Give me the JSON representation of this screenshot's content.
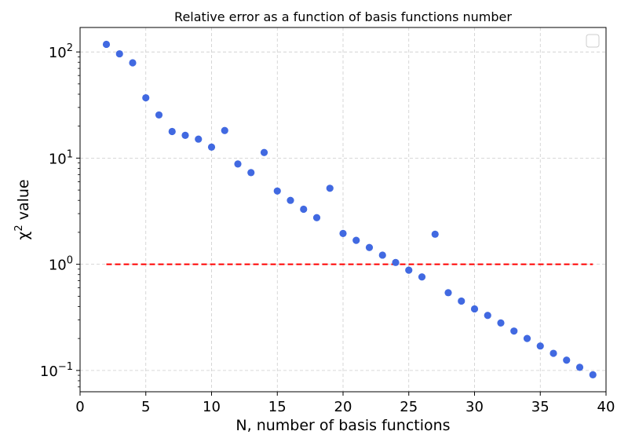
{
  "chart_data": {
    "type": "scatter",
    "title": "Relative error as a function of basis functions number",
    "xlabel": "N, number of basis functions",
    "ylabel": "χ² value",
    "xlim": [
      0,
      40
    ],
    "ylim": [
      0.063,
      170
    ],
    "yscale": "log",
    "grid": true,
    "legend": "top-right, empty",
    "x_ticks": [
      0,
      5,
      10,
      15,
      20,
      25,
      30,
      35,
      40
    ],
    "y_ticks": [
      {
        "value": 0.1,
        "base": "10",
        "exp": "−1"
      },
      {
        "value": 1,
        "base": "10",
        "exp": "0"
      },
      {
        "value": 10,
        "base": "10",
        "exp": "1"
      },
      {
        "value": 100,
        "base": "10",
        "exp": "2"
      }
    ],
    "colors": {
      "points": "#4169e1",
      "reference": "#ff0000",
      "grid": "#cccccc"
    },
    "series": [
      {
        "kind": "points",
        "x": [
          2,
          3,
          4,
          5,
          6,
          7,
          8,
          9,
          10,
          11,
          12,
          13,
          14,
          15,
          16,
          17,
          18,
          19,
          20,
          21,
          22,
          23,
          24,
          25,
          26,
          27,
          28,
          29,
          30,
          31,
          32,
          33,
          34,
          35,
          36,
          37,
          38,
          39
        ],
        "y": [
          118,
          96,
          79,
          37,
          25.5,
          17.8,
          16.4,
          15.1,
          12.7,
          18.2,
          8.8,
          7.3,
          11.3,
          4.9,
          4.0,
          3.3,
          2.75,
          5.2,
          1.95,
          1.68,
          1.44,
          1.22,
          1.04,
          0.88,
          0.76,
          1.92,
          0.54,
          0.45,
          0.38,
          0.33,
          0.28,
          0.235,
          0.2,
          0.17,
          0.145,
          0.125,
          0.107,
          0.091
        ]
      },
      {
        "kind": "reference-line",
        "x": [
          2,
          39
        ],
        "y": [
          1,
          1
        ]
      }
    ]
  }
}
